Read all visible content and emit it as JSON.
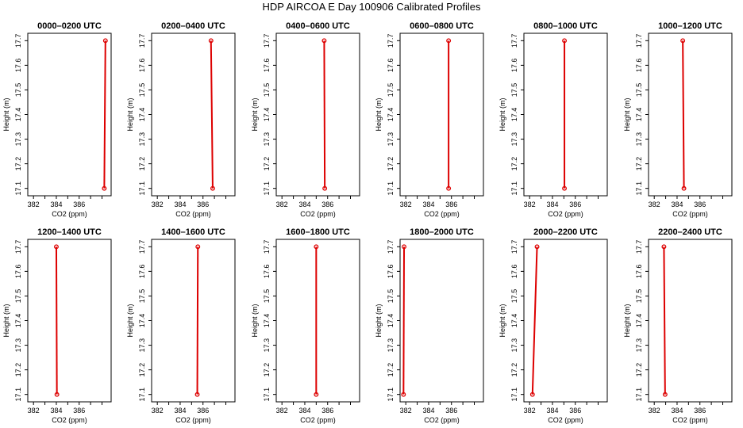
{
  "title": "HDP AIRCOA E  Day 100906  Calibrated Profiles",
  "colors": {
    "series": "#dd0000",
    "frame": "#000000"
  },
  "axes": {
    "xlabel": "CO2 (ppm)",
    "ylabel": "Height (m)",
    "xlim": [
      381.5,
      388.8
    ],
    "ylim": [
      17.07,
      17.73
    ],
    "xticks": [
      382,
      384,
      386
    ],
    "yticks": [
      17.1,
      17.2,
      17.3,
      17.4,
      17.5,
      17.6,
      17.7
    ]
  },
  "chart_data": [
    {
      "type": "line",
      "title": "0000–0200 UTC",
      "grid": false,
      "points": [
        {
          "x": 388.3,
          "y": 17.7
        },
        {
          "x": 388.2,
          "y": 17.1
        }
      ]
    },
    {
      "type": "line",
      "title": "0200–0400 UTC",
      "grid": false,
      "points": [
        {
          "x": 386.7,
          "y": 17.7
        },
        {
          "x": 386.85,
          "y": 17.1
        }
      ]
    },
    {
      "type": "line",
      "title": "0400–0600 UTC",
      "grid": false,
      "points": [
        {
          "x": 385.7,
          "y": 17.7
        },
        {
          "x": 385.75,
          "y": 17.1
        }
      ]
    },
    {
      "type": "line",
      "title": "0600–0800 UTC",
      "grid": false,
      "points": [
        {
          "x": 385.75,
          "y": 17.7
        },
        {
          "x": 385.75,
          "y": 17.1
        }
      ]
    },
    {
      "type": "line",
      "title": "0800–1000 UTC",
      "grid": false,
      "points": [
        {
          "x": 385.05,
          "y": 17.7
        },
        {
          "x": 385.05,
          "y": 17.1
        }
      ]
    },
    {
      "type": "line",
      "title": "1000–1200 UTC",
      "grid": false,
      "points": [
        {
          "x": 384.5,
          "y": 17.7
        },
        {
          "x": 384.6,
          "y": 17.1
        }
      ]
    },
    {
      "type": "line",
      "title": "1200–1400 UTC",
      "grid": false,
      "points": [
        {
          "x": 384.0,
          "y": 17.7
        },
        {
          "x": 384.05,
          "y": 17.1
        }
      ]
    },
    {
      "type": "line",
      "title": "1400–1600 UTC",
      "grid": false,
      "points": [
        {
          "x": 385.55,
          "y": 17.7
        },
        {
          "x": 385.5,
          "y": 17.1
        }
      ]
    },
    {
      "type": "line",
      "title": "1600–1800 UTC",
      "grid": false,
      "points": [
        {
          "x": 385.0,
          "y": 17.7
        },
        {
          "x": 385.0,
          "y": 17.1
        }
      ]
    },
    {
      "type": "line",
      "title": "1800–2000 UTC",
      "grid": false,
      "points": [
        {
          "x": 381.85,
          "y": 17.7
        },
        {
          "x": 381.8,
          "y": 17.1
        }
      ]
    },
    {
      "type": "line",
      "title": "2000–2200 UTC",
      "grid": false,
      "points": [
        {
          "x": 382.65,
          "y": 17.7
        },
        {
          "x": 382.25,
          "y": 17.1
        }
      ]
    },
    {
      "type": "line",
      "title": "2200–2400 UTC",
      "grid": false,
      "points": [
        {
          "x": 382.85,
          "y": 17.7
        },
        {
          "x": 382.95,
          "y": 17.1
        }
      ]
    }
  ]
}
